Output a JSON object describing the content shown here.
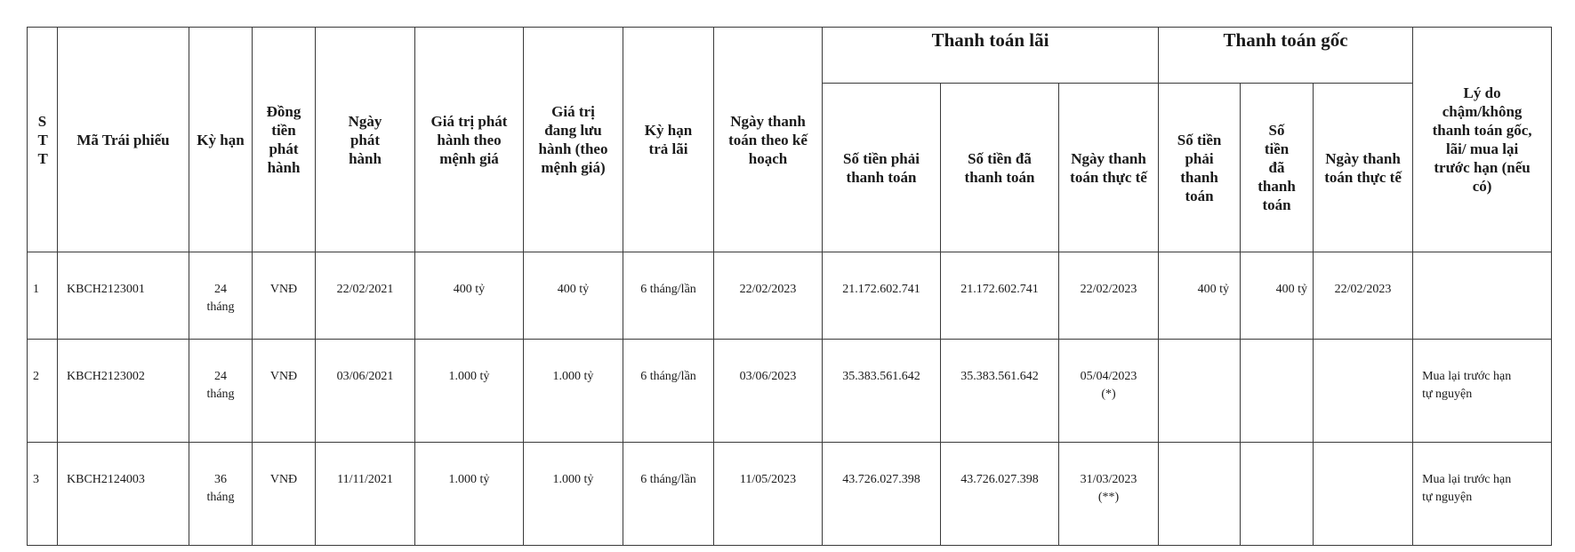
{
  "header": {
    "stt": "S T T",
    "bond_code": "Mã Trái phiếu",
    "term": "Kỳ hạn",
    "currency": "Đồng tiền phát hành",
    "issue_date": "Ngày phát hành",
    "issue_value": "Giá trị phát hành theo mệnh giá",
    "outstanding_value": "Giá trị đang lưu hành (theo mệnh giá)",
    "interest_period": "Kỳ hạn trả lãi",
    "planned_payment_date": "Ngày thanh toán theo kế hoạch",
    "interest_group": "Thanh toán lãi",
    "interest_due": "Số tiền phải thanh toán",
    "interest_paid": "Số tiền đã thanh toán",
    "interest_actual_date": "Ngày thanh toán thực tế",
    "principal_group": "Thanh toán gốc",
    "principal_due": "Số tiền phải thanh toán",
    "principal_paid": "Số tiền đã thanh toán",
    "principal_actual_date": "Ngày thanh toán thực tế",
    "reason": "Lý do chậm/không thanh toán gốc, lãi/ mua lại trước hạn (nếu có)"
  },
  "rows": [
    {
      "stt": "1",
      "code": "KBCH2123001",
      "term": "24 tháng",
      "currency": "VNĐ",
      "issue_date": "22/02/2021",
      "issue_value": "400 tỷ",
      "outstanding": "400 tỷ",
      "interest_period": "6 tháng/lần",
      "planned_date": "22/02/2023",
      "interest_due": "21.172.602.741",
      "interest_paid": "21.172.602.741",
      "interest_date": "22/02/2023",
      "interest_note": "",
      "principal_due": "400 tỷ",
      "principal_paid": "400 tỷ",
      "principal_date": "22/02/2023",
      "reason": ""
    },
    {
      "stt": "2",
      "code": "KBCH2123002",
      "term": "24 tháng",
      "currency": "VNĐ",
      "issue_date": "03/06/2021",
      "issue_value": "1.000 tỷ",
      "outstanding": "1.000 tỷ",
      "interest_period": "6 tháng/lần",
      "planned_date": "03/06/2023",
      "interest_due": "35.383.561.642",
      "interest_paid": "35.383.561.642",
      "interest_date": "05/04/2023",
      "interest_note": "(*)",
      "principal_due": "",
      "principal_paid": "",
      "principal_date": "",
      "reason": "Mua lại trước hạn tự nguyện"
    },
    {
      "stt": "3",
      "code": "KBCH2124003",
      "term": "36 tháng",
      "currency": "VNĐ",
      "issue_date": "11/11/2021",
      "issue_value": "1.000 tỷ",
      "outstanding": "1.000 tỷ",
      "interest_period": "6 tháng/lần",
      "planned_date": "11/05/2023",
      "interest_due": "43.726.027.398",
      "interest_paid": "43.726.027.398",
      "interest_date": "31/03/2023",
      "interest_note": "(**)",
      "principal_due": "",
      "principal_paid": "",
      "principal_date": "",
      "reason": "Mua lại trước hạn tự nguyện"
    }
  ]
}
